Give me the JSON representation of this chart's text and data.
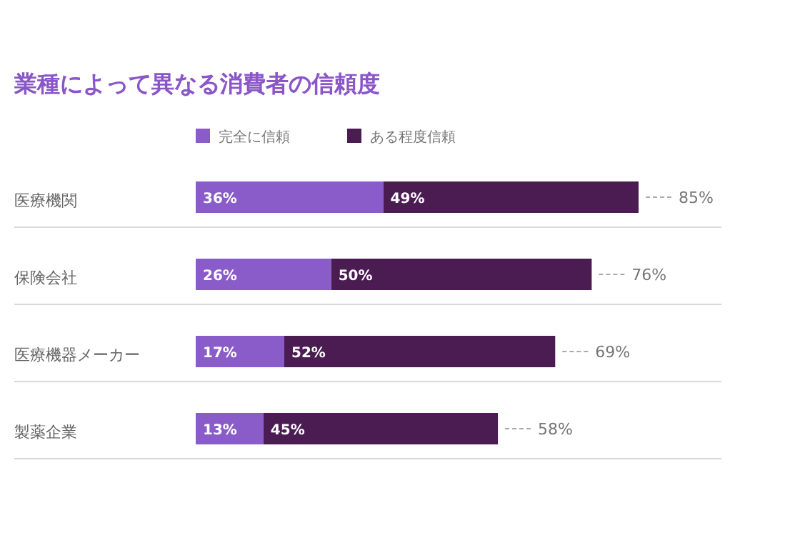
{
  "chart_data": {
    "type": "bar",
    "orientation": "horizontal",
    "stacked": true,
    "title": "業種によって異なる消費者の信頼度",
    "categories": [
      "医療機関",
      "保険会社",
      "医療機器メーカー",
      "製薬企業"
    ],
    "series": [
      {
        "name": "完全に信頼",
        "color": "#8a5cc9",
        "values": [
          36,
          26,
          17,
          13
        ],
        "value_labels": [
          "36%",
          "26%",
          "17%",
          "13%"
        ]
      },
      {
        "name": "ある程度信頼",
        "color": "#4a1c52",
        "values": [
          49,
          50,
          52,
          45
        ],
        "value_labels": [
          "49%",
          "50%",
          "52%",
          "45%"
        ]
      }
    ],
    "totals": [
      "85%",
      "76%",
      "69%",
      "58%"
    ],
    "legend": "top"
  }
}
